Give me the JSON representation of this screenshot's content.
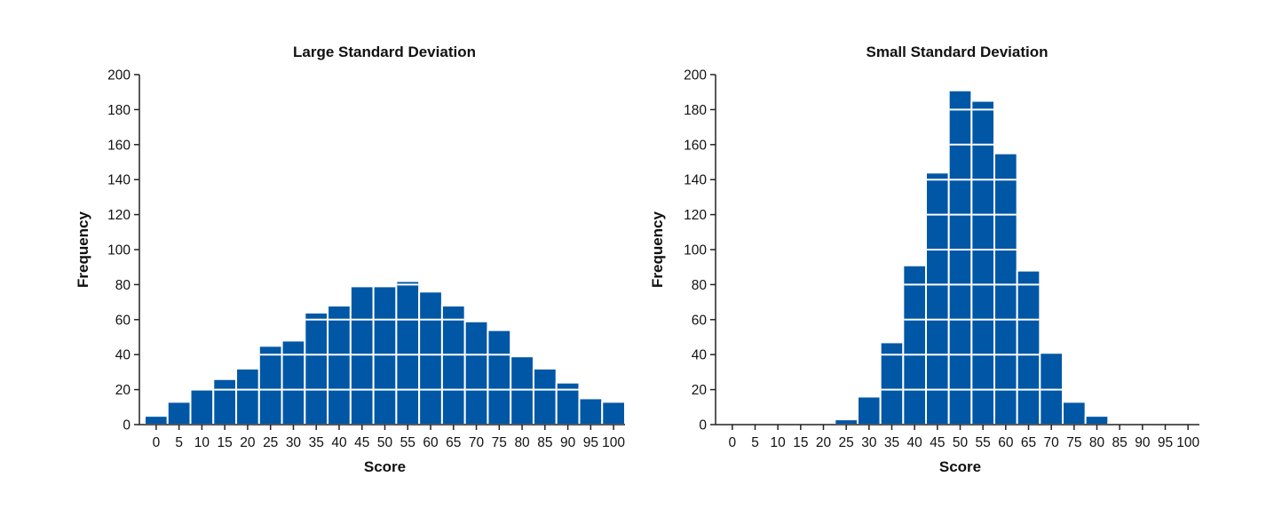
{
  "chart_data": [
    {
      "type": "bar",
      "title": "Large Standard Deviation",
      "xlabel": "Score",
      "ylabel": "Frequency",
      "ylim": [
        0,
        200
      ],
      "yticks": [
        "0",
        "20",
        "40",
        "60",
        "80",
        "100",
        "120",
        "140",
        "160",
        "180",
        "200"
      ],
      "categories": [
        "0",
        "5",
        "10",
        "15",
        "20",
        "25",
        "30",
        "35",
        "40",
        "45",
        "50",
        "55",
        "60",
        "65",
        "70",
        "75",
        "80",
        "85",
        "90",
        "95",
        "100"
      ],
      "values": [
        5,
        13,
        20,
        26,
        32,
        45,
        48,
        64,
        68,
        79,
        79,
        82,
        76,
        68,
        59,
        54,
        39,
        32,
        24,
        15,
        13
      ],
      "grid": false,
      "bar_color": "#0057a6",
      "bar_edge_color": "#ffffff"
    },
    {
      "type": "bar",
      "title": "Small Standard Deviation",
      "xlabel": "Score",
      "ylabel": "Frequency",
      "ylim": [
        0,
        200
      ],
      "yticks": [
        "0",
        "20",
        "40",
        "60",
        "80",
        "100",
        "120",
        "140",
        "160",
        "180",
        "200"
      ],
      "categories": [
        "0",
        "5",
        "10",
        "15",
        "20",
        "25",
        "30",
        "35",
        "40",
        "45",
        "50",
        "55",
        "60",
        "65",
        "70",
        "75",
        "80",
        "85",
        "90",
        "95",
        "100"
      ],
      "values": [
        0,
        0,
        0,
        0,
        0,
        3,
        16,
        47,
        91,
        144,
        191,
        185,
        155,
        88,
        41,
        13,
        5,
        1,
        0,
        0,
        0
      ],
      "grid": false,
      "bar_color": "#0057a6",
      "bar_edge_color": "#ffffff"
    }
  ]
}
